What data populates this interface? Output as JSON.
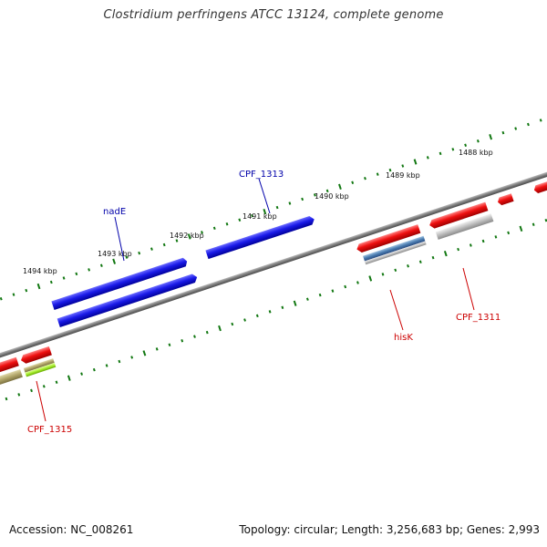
{
  "title": "Clostridium perfringens ATCC 13124, complete genome",
  "footer": {
    "accession": "Accession: NC_008261",
    "topology": "Topology: circular; Length: 3,256,683 bp; Genes: 2,993"
  },
  "colors": {
    "forward_cds": "#1010e0",
    "reverse_cds": "#ee0000",
    "backbone": "#808080",
    "tick": "#117711",
    "forward_label": "#0000aa",
    "reverse_label": "#cc0000"
  },
  "ticks": [
    {
      "label": "1488 kbp"
    },
    {
      "label": "1489 kbp"
    },
    {
      "label": "1490 kbp"
    },
    {
      "label": "1491 kbp"
    },
    {
      "label": "1492 kbp"
    },
    {
      "label": "1493 kbp"
    },
    {
      "label": "1494 kbp"
    }
  ],
  "gene_labels": [
    {
      "name": "CPF_1313",
      "strand": "forward"
    },
    {
      "name": "nadE",
      "strand": "forward"
    },
    {
      "name": "hisK",
      "strand": "reverse"
    },
    {
      "name": "CPF_1311",
      "strand": "reverse"
    },
    {
      "name": "CPF_1315",
      "strand": "reverse"
    }
  ]
}
